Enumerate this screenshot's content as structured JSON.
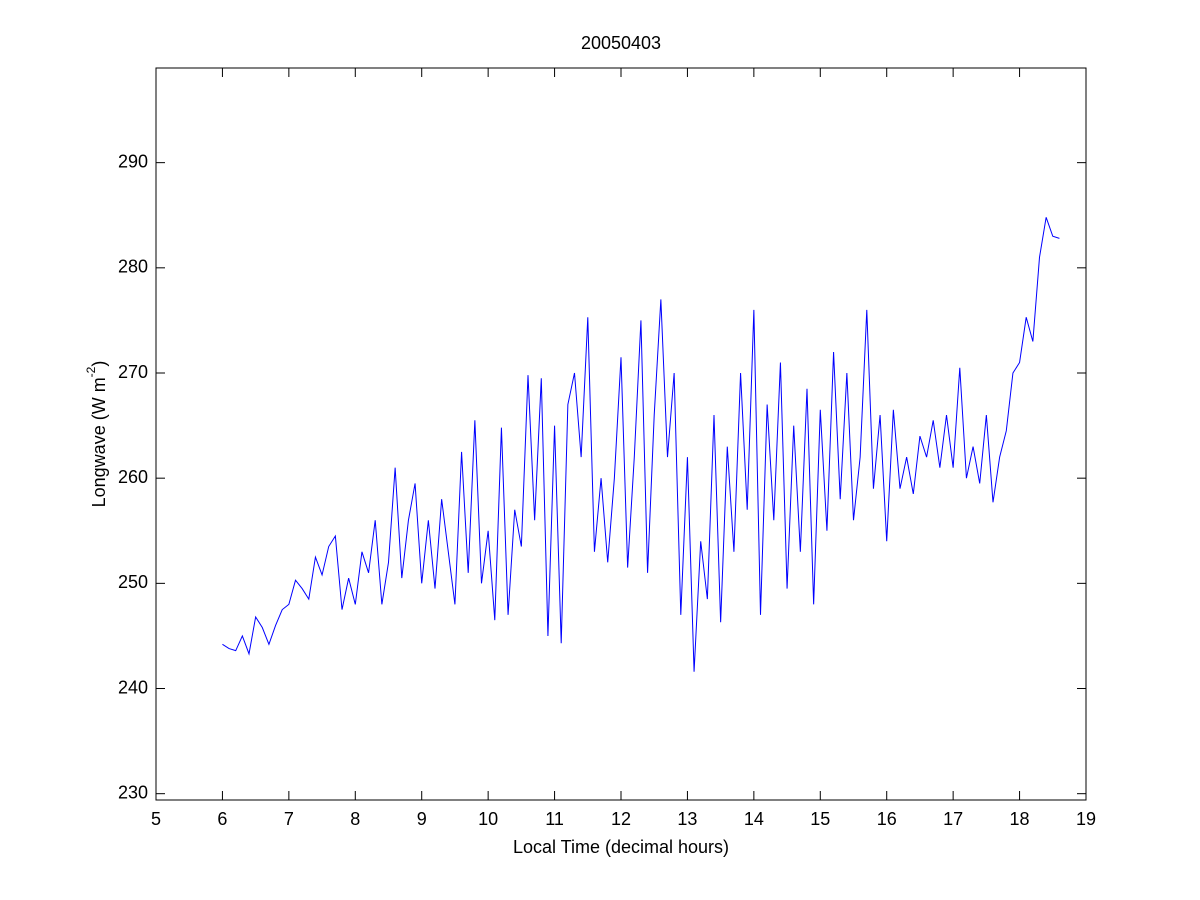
{
  "chart_data": {
    "type": "line",
    "title": "20050403",
    "x_label": "Local Time (decimal hours)",
    "y_label": {
      "text": "Longwave (W m",
      "superscript": "-2",
      "suffix": ")"
    },
    "xlim": [
      5,
      19
    ],
    "xticks": [
      5,
      6,
      7,
      8,
      9,
      10,
      11,
      12,
      13,
      14,
      15,
      16,
      17,
      18,
      19
    ],
    "ylim": [
      229.4,
      299
    ],
    "yticks": [
      230,
      240,
      250,
      260,
      270,
      280,
      290
    ],
    "x": [
      6.0,
      6.1,
      6.2,
      6.3,
      6.4,
      6.5,
      6.6,
      6.7,
      6.8,
      6.9,
      7.0,
      7.1,
      7.2,
      7.3,
      7.4,
      7.5,
      7.6,
      7.7,
      7.8,
      7.9,
      8.0,
      8.1,
      8.2,
      8.3,
      8.4,
      8.5,
      8.6,
      8.7,
      8.8,
      8.9,
      9.0,
      9.1,
      9.2,
      9.3,
      9.4,
      9.5,
      9.6,
      9.7,
      9.8,
      9.9,
      10.0,
      10.1,
      10.2,
      10.3,
      10.4,
      10.5,
      10.6,
      10.7,
      10.8,
      10.9,
      11.0,
      11.1,
      11.2,
      11.3,
      11.4,
      11.5,
      11.6,
      11.7,
      11.8,
      11.9,
      12.0,
      12.1,
      12.2,
      12.3,
      12.4,
      12.5,
      12.6,
      12.7,
      12.8,
      12.9,
      13.0,
      13.1,
      13.2,
      13.3,
      13.4,
      13.5,
      13.6,
      13.7,
      13.8,
      13.9,
      14.0,
      14.1,
      14.2,
      14.3,
      14.4,
      14.5,
      14.6,
      14.7,
      14.8,
      14.9,
      15.0,
      15.1,
      15.2,
      15.3,
      15.4,
      15.5,
      15.6,
      15.7,
      15.8,
      15.9,
      16.0,
      16.1,
      16.2,
      16.3,
      16.4,
      16.5,
      16.6,
      16.7,
      16.8,
      16.9,
      17.0,
      17.1,
      17.2,
      17.3,
      17.4,
      17.5,
      17.6,
      17.7,
      17.8,
      17.9,
      18.0,
      18.1,
      18.2,
      18.3,
      18.4,
      18.5,
      18.6
    ],
    "series": [
      {
        "color": "#0000ff",
        "values": [
          244.2,
          243.8,
          243.6,
          245,
          243.3,
          246.8,
          245.8,
          244.2,
          246,
          247.5,
          248,
          250.3,
          249.5,
          248.5,
          252.5,
          250.8,
          253.5,
          254.5,
          247.5,
          250.5,
          248,
          253,
          251,
          256,
          248,
          252,
          261,
          250.5,
          256,
          259.5,
          250,
          256,
          249.5,
          258,
          253,
          248,
          262.5,
          251,
          265.5,
          250,
          255,
          246.5,
          264.8,
          247,
          257,
          253.5,
          269.8,
          256,
          269.5,
          245,
          265,
          244.3,
          267,
          270,
          262,
          275.3,
          253,
          260,
          252,
          260,
          271.5,
          251.5,
          262,
          275,
          251,
          266,
          277,
          262,
          270,
          247,
          262,
          241.6,
          254,
          248.5,
          266,
          246.3,
          263,
          253,
          270,
          257,
          276,
          247,
          267,
          256,
          271,
          249.5,
          265,
          253,
          268.5,
          248,
          266.5,
          255,
          272,
          258,
          270,
          256,
          262,
          276,
          259,
          266,
          254,
          266.5,
          259,
          262,
          258.5,
          264,
          262,
          265.5,
          261,
          266,
          261,
          270.5,
          260,
          263,
          259.5,
          266,
          257.7,
          262,
          264.5,
          270,
          271,
          275.3,
          273,
          281,
          284.8,
          283,
          282.8
        ]
      }
    ]
  }
}
